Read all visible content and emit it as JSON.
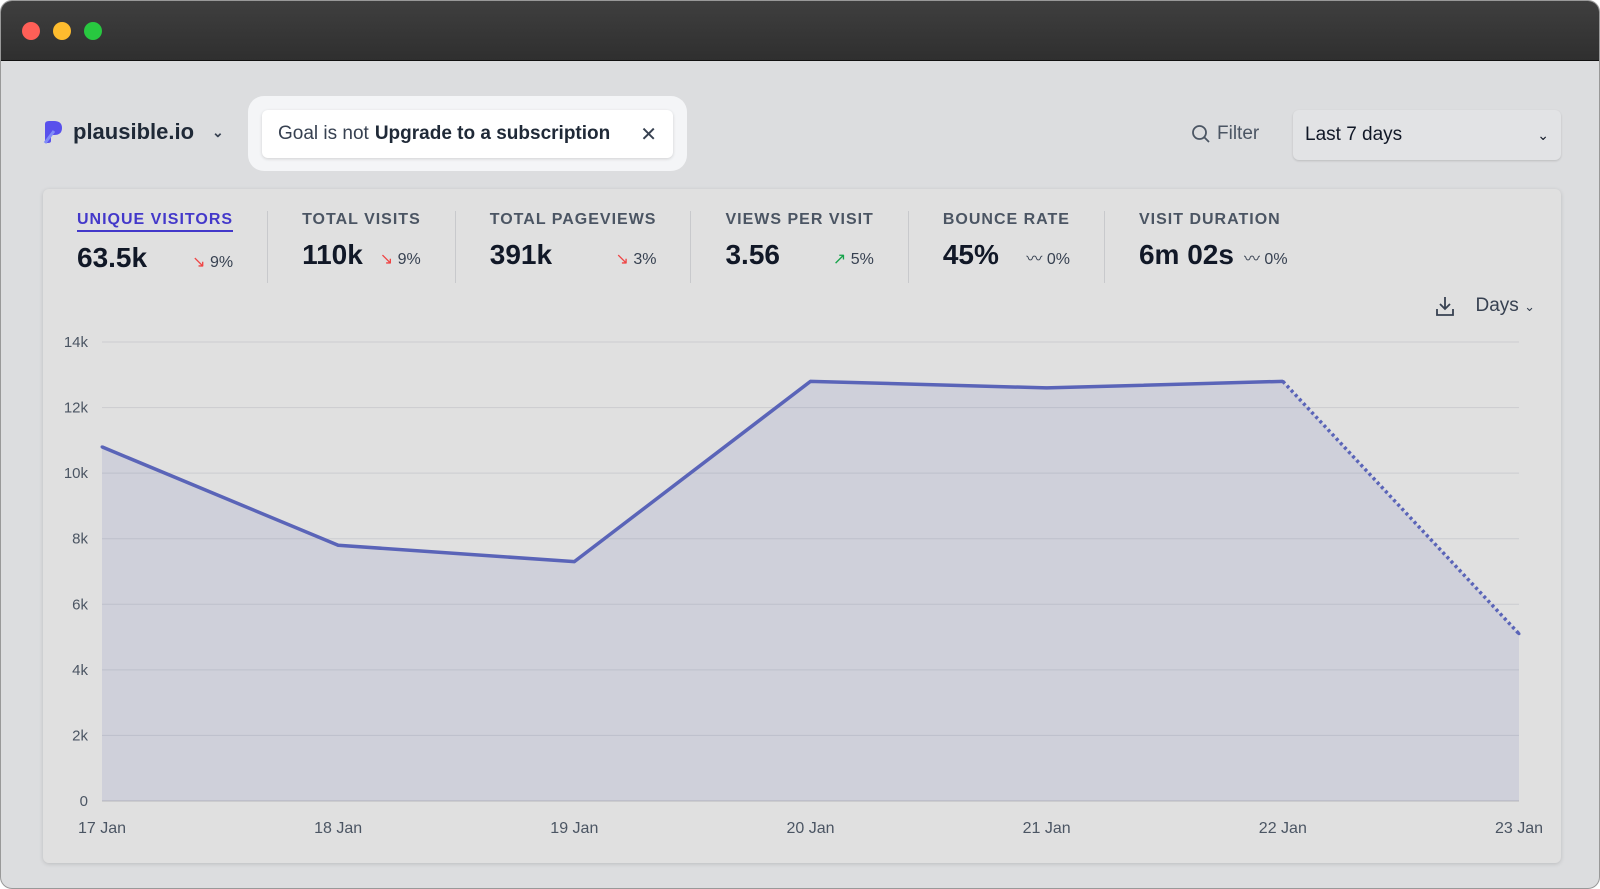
{
  "window": {
    "controls": [
      {
        "name": "close",
        "color": "#ff5f57"
      },
      {
        "name": "minimize",
        "color": "#febc2e"
      },
      {
        "name": "zoom",
        "color": "#28c840"
      }
    ]
  },
  "header": {
    "site": "plausible.io",
    "filter": {
      "prefix": "Goal is not",
      "value": "Upgrade to a subscription"
    },
    "filter_button": "Filter",
    "period": "Last 7 days"
  },
  "metrics": [
    {
      "label": "UNIQUE VISITORS",
      "value": "63.5k",
      "change": "9%",
      "trend": "down",
      "active": true
    },
    {
      "label": "TOTAL VISITS",
      "value": "110k",
      "change": "9%",
      "trend": "down"
    },
    {
      "label": "TOTAL PAGEVIEWS",
      "value": "391k",
      "change": "3%",
      "trend": "down"
    },
    {
      "label": "VIEWS PER VISIT",
      "value": "3.56",
      "change": "5%",
      "trend": "up"
    },
    {
      "label": "BOUNCE RATE",
      "value": "45%",
      "change": "0%",
      "trend": "flat"
    },
    {
      "label": "VISIT DURATION",
      "value": "6m 02s",
      "change": "0%",
      "trend": "flat"
    }
  ],
  "chart_controls": {
    "interval": "Days"
  },
  "chart_data": {
    "type": "area",
    "x": [
      "17 Jan",
      "18 Jan",
      "19 Jan",
      "20 Jan",
      "21 Jan",
      "22 Jan",
      "23 Jan"
    ],
    "values": [
      10800,
      7800,
      7300,
      12800,
      12600,
      12800,
      5100
    ],
    "incomplete_last_point": true,
    "ylim": [
      0,
      14000
    ],
    "yticks": [
      "0",
      "2k",
      "4k",
      "6k",
      "8k",
      "10k",
      "12k",
      "14k"
    ],
    "grid": true,
    "color": "#5a64b8"
  }
}
